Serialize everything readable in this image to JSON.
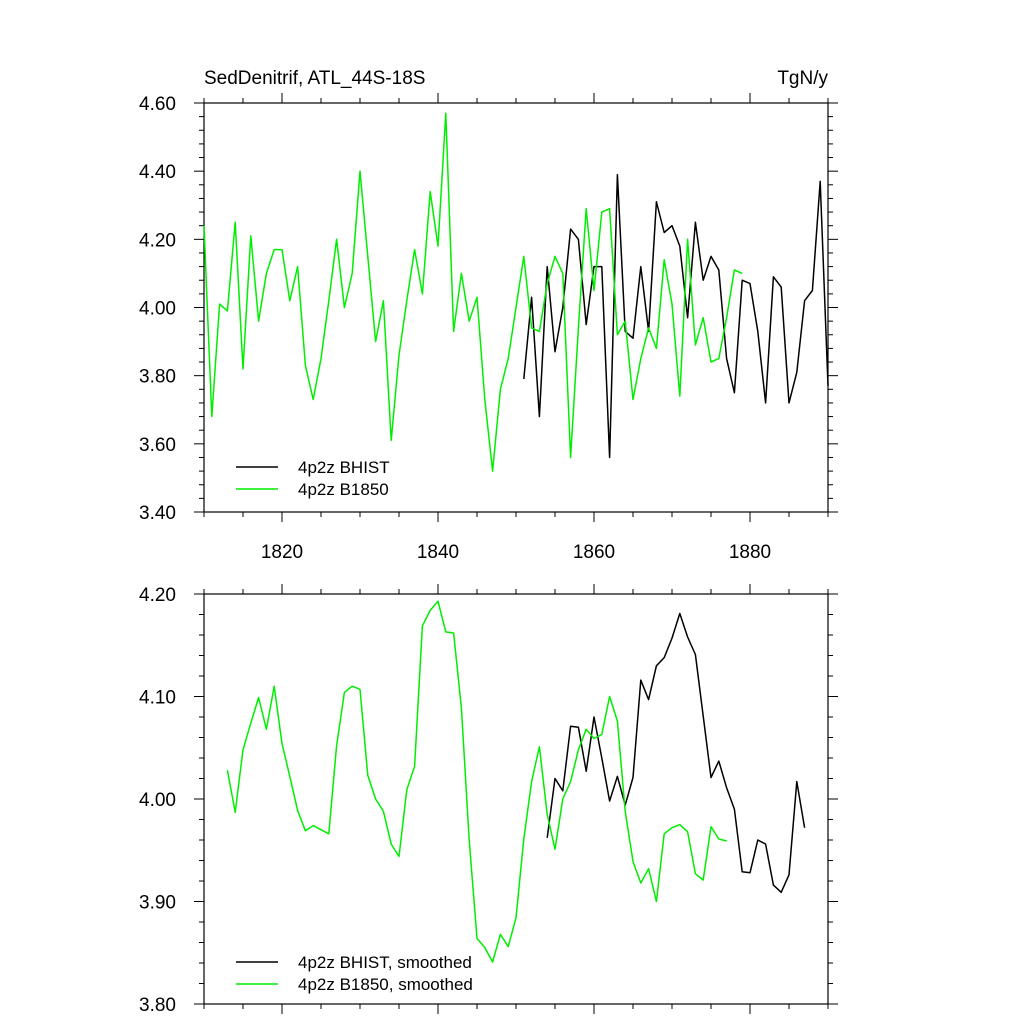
{
  "chart_data": [
    {
      "type": "line",
      "title": "SedDenitrif, ATL_44S-18S",
      "units": "TgN/y",
      "xlim": [
        1810,
        1890
      ],
      "ylim": [
        3.4,
        4.6
      ],
      "x_ticks": [
        1820,
        1840,
        1860,
        1880
      ],
      "x_tick_labels": [
        "1820",
        "1840",
        "1860",
        "1880"
      ],
      "y_ticks": [
        3.4,
        3.6,
        3.8,
        4.0,
        4.2,
        4.4,
        4.6
      ],
      "y_tick_labels": [
        "3.40",
        "3.60",
        "3.80",
        "4.00",
        "4.20",
        "4.40",
        "4.60"
      ],
      "legend_position": "bottom-left",
      "series": [
        {
          "name": "4p2z BHIST",
          "color": "#000000",
          "x": [
            1851,
            1852,
            1853,
            1854,
            1855,
            1856,
            1857,
            1858,
            1859,
            1860,
            1861,
            1862,
            1863,
            1864,
            1865,
            1866,
            1867,
            1868,
            1869,
            1870,
            1871,
            1872,
            1873,
            1874,
            1875,
            1876,
            1877,
            1878,
            1879,
            1880,
            1881,
            1882,
            1883,
            1884,
            1885,
            1886,
            1887,
            1888,
            1889,
            1890
          ],
          "values": [
            3.79,
            4.03,
            3.68,
            4.12,
            3.87,
            4.0,
            4.23,
            4.2,
            3.95,
            4.12,
            4.12,
            3.56,
            4.39,
            3.93,
            3.91,
            4.12,
            3.93,
            4.31,
            4.22,
            4.24,
            4.18,
            3.97,
            4.25,
            4.08,
            4.15,
            4.11,
            3.85,
            3.75,
            4.08,
            4.07,
            3.93,
            3.72,
            4.09,
            4.06,
            3.72,
            3.81,
            4.02,
            4.05,
            4.37,
            3.77
          ]
        },
        {
          "name": "4p2z B1850",
          "color": "#00ee00",
          "x": [
            1810,
            1811,
            1812,
            1813,
            1814,
            1815,
            1816,
            1817,
            1818,
            1819,
            1820,
            1821,
            1822,
            1823,
            1824,
            1825,
            1826,
            1827,
            1828,
            1829,
            1830,
            1831,
            1832,
            1833,
            1834,
            1835,
            1836,
            1837,
            1838,
            1839,
            1840,
            1841,
            1842,
            1843,
            1844,
            1845,
            1846,
            1847,
            1848,
            1849,
            1850,
            1851,
            1852,
            1853,
            1854,
            1855,
            1856,
            1857,
            1858,
            1859,
            1860,
            1861,
            1862,
            1863,
            1864,
            1865,
            1866,
            1867,
            1868,
            1869,
            1870,
            1871,
            1872,
            1873,
            1874,
            1875,
            1876,
            1877,
            1878,
            1879,
            1880
          ],
          "values": [
            4.24,
            3.68,
            4.01,
            3.99,
            4.25,
            3.82,
            4.21,
            3.96,
            4.1,
            4.17,
            4.17,
            4.02,
            4.12,
            3.83,
            3.73,
            3.85,
            4.02,
            4.2,
            4.0,
            4.1,
            4.4,
            4.15,
            3.9,
            4.02,
            3.61,
            3.86,
            4.02,
            4.17,
            4.04,
            4.34,
            4.18,
            4.57,
            3.93,
            4.1,
            3.96,
            4.03,
            3.73,
            3.52,
            3.76,
            3.85,
            4.0,
            4.15,
            3.94,
            3.93,
            4.07,
            4.15,
            4.1,
            3.56,
            3.94,
            4.29,
            4.05,
            4.28,
            4.29,
            3.92,
            3.96,
            3.73,
            3.85,
            3.94,
            3.88,
            4.14,
            4.01,
            3.74,
            4.2,
            3.89,
            3.97,
            3.84,
            3.85,
            3.97,
            4.11,
            4.1,
            null
          ]
        }
      ]
    },
    {
      "type": "line",
      "xlim": [
        1810,
        1890
      ],
      "ylim": [
        3.8,
        4.2
      ],
      "x_ticks": [
        1820,
        1840,
        1860,
        1880
      ],
      "y_ticks": [
        3.8,
        3.9,
        4.0,
        4.1,
        4.2
      ],
      "y_tick_labels": [
        "3.80",
        "3.90",
        "4.00",
        "4.10",
        "4.20"
      ],
      "legend_position": "bottom-left",
      "series": [
        {
          "name": "4p2z BHIST, smoothed",
          "color": "#000000",
          "x": [
            1854,
            1855,
            1856,
            1857,
            1858,
            1859,
            1860,
            1861,
            1862,
            1863,
            1864,
            1865,
            1866,
            1867,
            1868,
            1869,
            1870,
            1871,
            1872,
            1873,
            1874,
            1875,
            1876,
            1877,
            1878,
            1879,
            1880,
            1881,
            1882,
            1883,
            1884,
            1885,
            1886,
            1887
          ],
          "values": [
            3.962,
            4.02,
            4.008,
            4.071,
            4.07,
            4.027,
            4.08,
            4.04,
            3.998,
            4.022,
            3.994,
            4.021,
            4.116,
            4.097,
            4.13,
            4.138,
            4.157,
            4.181,
            4.158,
            4.141,
            4.081,
            4.021,
            4.037,
            4.011,
            3.99,
            3.929,
            3.928,
            3.96,
            3.956,
            3.916,
            3.909,
            3.926,
            4.017,
            3.972
          ]
        },
        {
          "name": "4p2z B1850, smoothed",
          "color": "#00ee00",
          "x": [
            1813,
            1814,
            1815,
            1816,
            1817,
            1818,
            1819,
            1820,
            1821,
            1822,
            1823,
            1824,
            1825,
            1826,
            1827,
            1828,
            1829,
            1830,
            1831,
            1832,
            1833,
            1834,
            1835,
            1836,
            1837,
            1838,
            1839,
            1840,
            1841,
            1842,
            1843,
            1844,
            1845,
            1846,
            1847,
            1848,
            1849,
            1850,
            1851,
            1852,
            1853,
            1854,
            1855,
            1856,
            1857,
            1858,
            1859,
            1860,
            1861,
            1862,
            1863,
            1864,
            1865,
            1866,
            1867,
            1868,
            1869,
            1870,
            1871,
            1872,
            1873,
            1874,
            1875,
            1876,
            1877
          ],
          "values": [
            4.028,
            3.987,
            4.048,
            4.074,
            4.099,
            4.068,
            4.11,
            4.054,
            4.022,
            3.989,
            3.969,
            3.974,
            3.97,
            3.966,
            4.052,
            4.104,
            4.11,
            4.107,
            4.023,
            4.0,
            3.988,
            3.956,
            3.944,
            4.009,
            4.032,
            4.169,
            4.184,
            4.193,
            4.163,
            4.162,
            4.089,
            3.96,
            3.864,
            3.855,
            3.841,
            3.868,
            3.856,
            3.884,
            3.961,
            4.017,
            4.051,
            3.985,
            3.951,
            4.0,
            4.017,
            4.048,
            4.068,
            4.059,
            4.063,
            4.1,
            4.076,
            3.988,
            3.939,
            3.918,
            3.932,
            3.9,
            3.966,
            3.972,
            3.975,
            3.968,
            3.927,
            3.921,
            3.973,
            3.961,
            3.959
          ]
        }
      ]
    }
  ]
}
